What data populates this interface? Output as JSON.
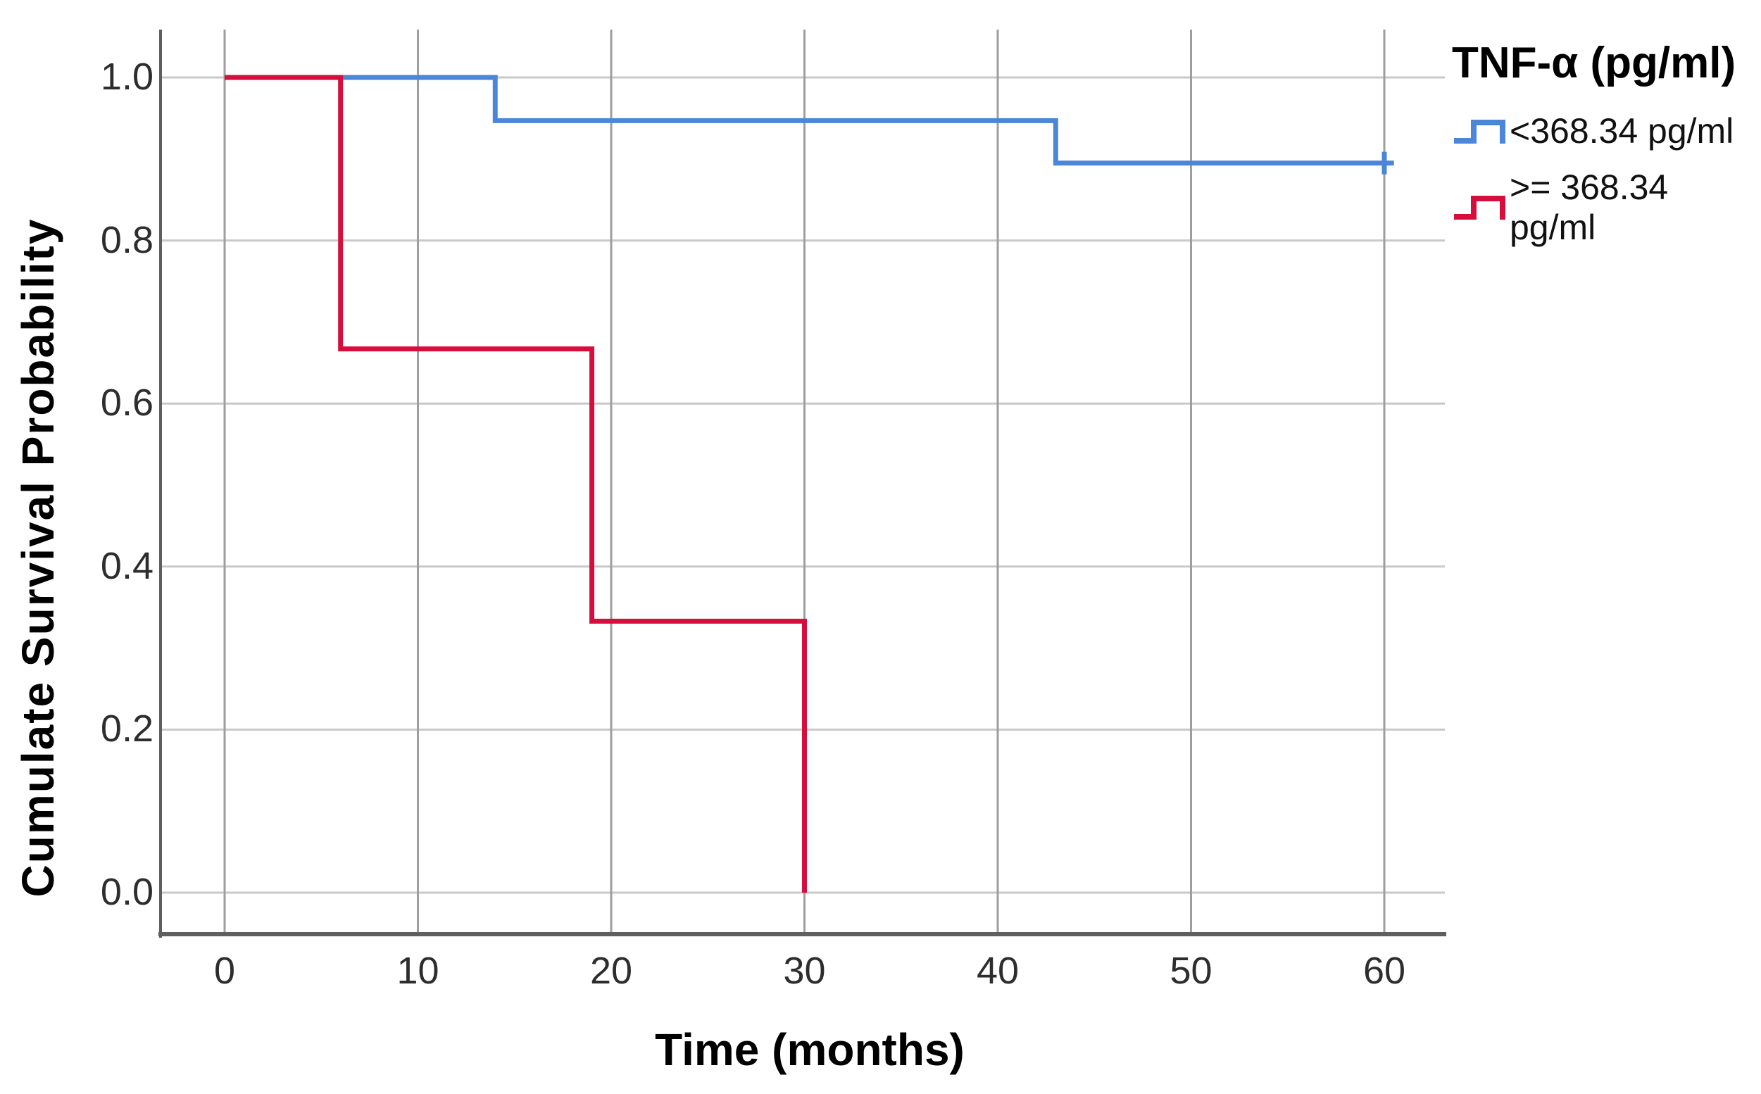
{
  "chart_data": {
    "type": "line",
    "subtype": "kaplan-meier-step-survival",
    "title": "",
    "xlabel": "Time (months)",
    "ylabel": "Cumulate Survival Probability",
    "xlim": [
      0,
      60
    ],
    "ylim": [
      0.0,
      1.0
    ],
    "grid": true,
    "legend_position": "right",
    "x_ticks": [
      {
        "value": 0,
        "label": "0"
      },
      {
        "value": 10,
        "label": "10"
      },
      {
        "value": 20,
        "label": "20"
      },
      {
        "value": 30,
        "label": "30"
      },
      {
        "value": 40,
        "label": "40"
      },
      {
        "value": 50,
        "label": "50"
      },
      {
        "value": 60,
        "label": "60"
      }
    ],
    "y_ticks": [
      {
        "value": 1.0,
        "label": "1.0"
      },
      {
        "value": 0.8,
        "label": "0.8"
      },
      {
        "value": 0.6,
        "label": "0.6"
      },
      {
        "value": 0.4,
        "label": "0.4"
      },
      {
        "value": 0.2,
        "label": "0.2"
      },
      {
        "value": 0.0,
        "label": "0.0"
      }
    ],
    "series": [
      {
        "name": "<368.34 pg/ml",
        "color": "#4b86d9",
        "points": [
          [
            0,
            1.0
          ],
          [
            14,
            1.0
          ],
          [
            14,
            0.947
          ],
          [
            43,
            0.947
          ],
          [
            43,
            0.895
          ],
          [
            60.5,
            0.895
          ]
        ],
        "censored": [
          [
            60,
            0.895
          ]
        ]
      },
      {
        "name": ">= 368.34 pg/ml",
        "color": "#d60e3d",
        "points": [
          [
            0,
            1.0
          ],
          [
            6,
            1.0
          ],
          [
            6,
            0.667
          ],
          [
            19,
            0.667
          ],
          [
            19,
            0.333
          ],
          [
            30,
            0.333
          ],
          [
            30,
            0.0
          ]
        ],
        "censored": []
      }
    ]
  },
  "axis_titles": {
    "x": "Time (months)",
    "y": "Cumulate Survival Probability"
  },
  "legend": {
    "title": "TNF-α (pg/ml)",
    "items": [
      {
        "label": "<368.34 pg/ml",
        "color": "#4b86d9"
      },
      {
        "label": ">= 368.34 pg/ml",
        "color": "#d60e3d"
      }
    ]
  }
}
